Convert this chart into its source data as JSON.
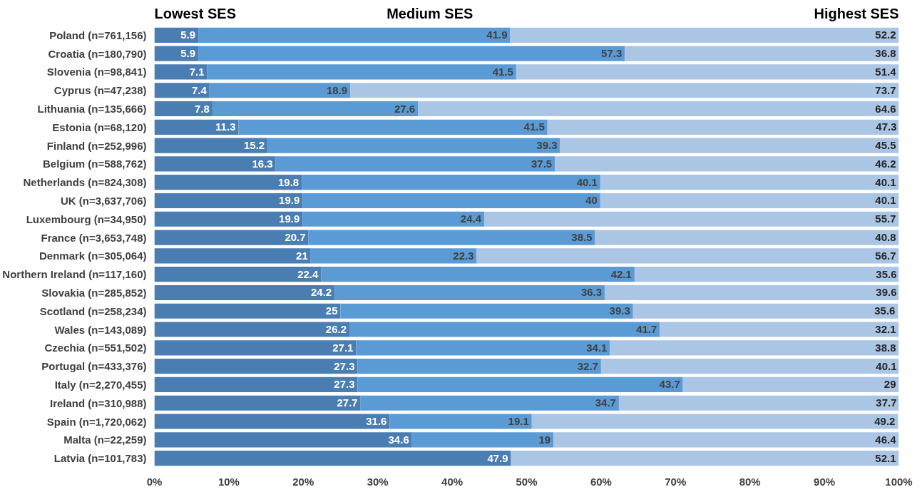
{
  "chart_data": {
    "type": "bar",
    "orientation": "horizontal",
    "stacked": true,
    "data_labels": true,
    "grid": false,
    "categories": [
      "Poland (n=761,156)",
      "Croatia (n=180,790)",
      "Slovenia (n=98,841)",
      "Cyprus (n=47,238)",
      "Lithuania (n=135,666)",
      "Estonia (n=68,120)",
      "Finland (n=252,996)",
      "Belgium (n=588,762)",
      "Netherlands (n=824,308)",
      "UK (n=3,637,706)",
      "Luxembourg (n=34,950)",
      "France (n=3,653,748)",
      "Denmark (n=305,064)",
      "Northern Ireland (n=117,160)",
      "Slovakia (n=285,852)",
      "Scotland (n=258,234)",
      "Wales (n=143,089)",
      "Czechia (n=551,502)",
      "Portugal (n=433,376)",
      "Italy (n=2,270,455)",
      "Ireland (n=310,988)",
      "Spain (n=1,720,062)",
      "Malta (n=22,259)",
      "Latvia (n=101,783)"
    ],
    "series": [
      {
        "name": "Lowest SES",
        "color": "#4a7eb3",
        "values": [
          5.9,
          5.9,
          7.1,
          7.4,
          7.8,
          11.3,
          15.2,
          16.3,
          19.8,
          19.9,
          19.9,
          20.7,
          21,
          22.4,
          24.2,
          25,
          26.2,
          27.1,
          27.3,
          27.3,
          27.7,
          31.6,
          34.6,
          47.9
        ]
      },
      {
        "name": "Medium SES",
        "color": "#5b9bd5",
        "values": [
          41.9,
          57.3,
          41.5,
          18.9,
          27.6,
          41.5,
          39.3,
          37.5,
          40.1,
          40,
          24.4,
          38.5,
          22.3,
          42.1,
          36.3,
          39.3,
          41.7,
          34.1,
          32.7,
          43.7,
          34.7,
          19.1,
          19,
          null
        ]
      },
      {
        "name": "Highest SES",
        "color": "#abc5e5",
        "values": [
          52.2,
          36.8,
          51.4,
          73.7,
          64.6,
          47.3,
          45.5,
          46.2,
          40.1,
          40.1,
          55.7,
          40.8,
          56.7,
          35.6,
          39.6,
          35.6,
          32.1,
          38.8,
          40.1,
          29,
          37.7,
          49.2,
          46.4,
          52.1
        ]
      }
    ],
    "xlim": [
      0,
      100
    ],
    "xticks": [
      {
        "value": 0,
        "label": "0%"
      },
      {
        "value": 10,
        "label": "10%"
      },
      {
        "value": 20,
        "label": "20%"
      },
      {
        "value": 30,
        "label": "30%"
      },
      {
        "value": 40,
        "label": "40%"
      },
      {
        "value": 50,
        "label": "50%"
      },
      {
        "value": 60,
        "label": "60%"
      },
      {
        "value": 70,
        "label": "70%"
      },
      {
        "value": 80,
        "label": "80%"
      },
      {
        "value": 90,
        "label": "90%"
      },
      {
        "value": 100,
        "label": "100%"
      }
    ]
  }
}
